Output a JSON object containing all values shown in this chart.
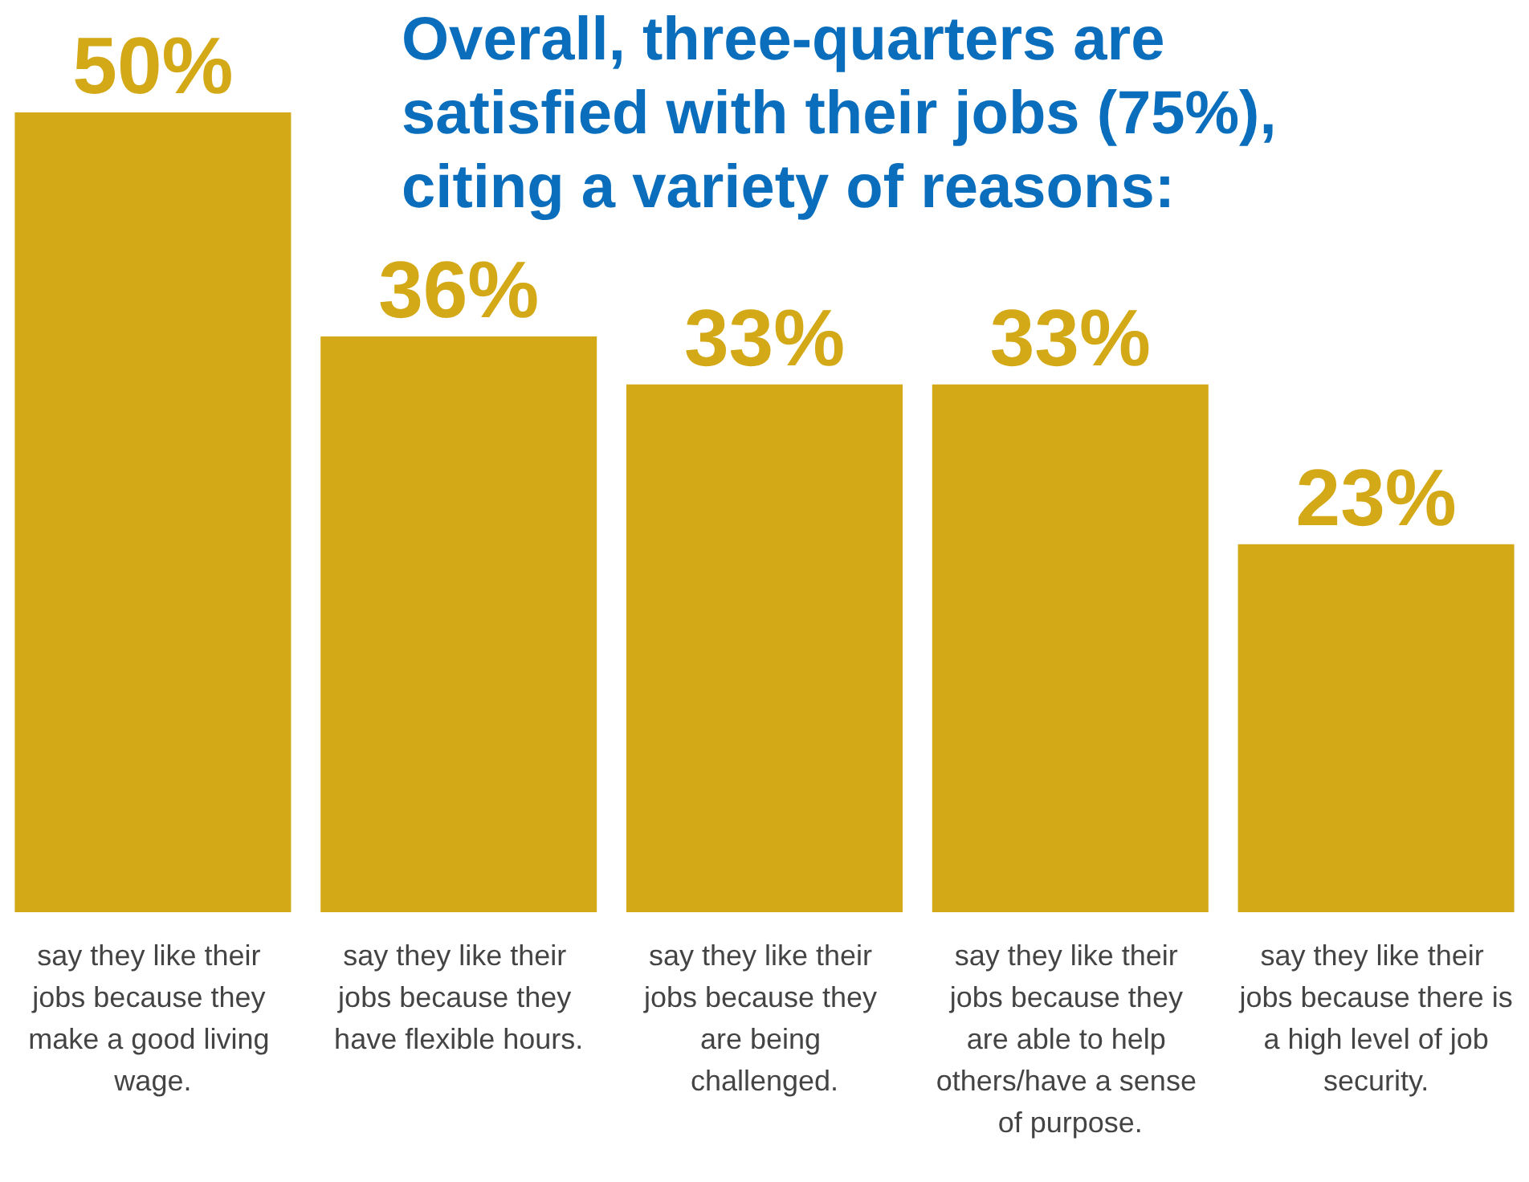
{
  "chart_data": {
    "type": "bar",
    "title": "Overall, three-quarters are satisfied with their jobs (75%), citing a variety of reasons:",
    "categories": [
      "say they like their jobs because they make a good living wage.",
      "say they like their jobs because they have flexible hours.",
      "say they like their jobs because they are being challenged.",
      "say they like their jobs because they are able to help others/have a sense of purpose.",
      "say they like their jobs because there is a high level of job security."
    ],
    "values": [
      50,
      36,
      33,
      33,
      23
    ],
    "value_labels": [
      "50%",
      "36%",
      "33%",
      "33%",
      "23%"
    ],
    "color": "#d4a917"
  }
}
